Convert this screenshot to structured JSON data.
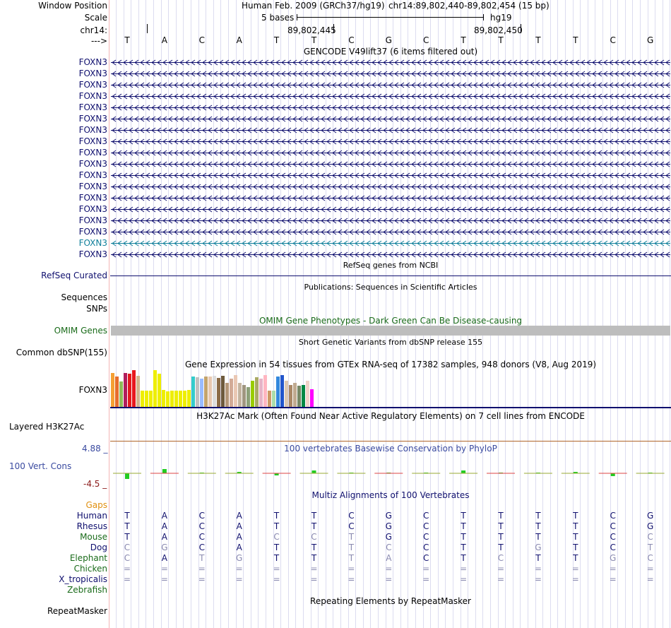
{
  "header": {
    "window_position_label": "Window Position",
    "assembly": "Human Feb. 2009 (GRCh37/hg19)",
    "position": "chr14:89,802,440-89,802,454 (15 bp)",
    "scale_label": "Scale",
    "scale_text": "5 bases",
    "db": "hg19",
    "chrom_label": "chr14:",
    "coord1": "89,802,445",
    "coord2": "89,802,450",
    "strand_label": "--->"
  },
  "dna": [
    "T",
    "A",
    "C",
    "A",
    "T",
    "T",
    "C",
    "G",
    "C",
    "T",
    "T",
    "T",
    "T",
    "C",
    "G"
  ],
  "gencode": {
    "title": "GENCODE V49lift37 (6 items filtered out)",
    "genes": [
      {
        "name": "FOXN3",
        "color": "#0f0f6e"
      },
      {
        "name": "FOXN3",
        "color": "#0f0f6e"
      },
      {
        "name": "FOXN3",
        "color": "#0f0f6e"
      },
      {
        "name": "FOXN3",
        "color": "#0f0f6e"
      },
      {
        "name": "FOXN3",
        "color": "#0f0f6e"
      },
      {
        "name": "FOXN3",
        "color": "#0f0f6e"
      },
      {
        "name": "FOXN3",
        "color": "#0f0f6e"
      },
      {
        "name": "FOXN3",
        "color": "#0f0f6e"
      },
      {
        "name": "FOXN3",
        "color": "#0f0f6e"
      },
      {
        "name": "FOXN3",
        "color": "#0f0f6e"
      },
      {
        "name": "FOXN3",
        "color": "#0f0f6e"
      },
      {
        "name": "FOXN3",
        "color": "#0f0f6e"
      },
      {
        "name": "FOXN3",
        "color": "#0f0f6e"
      },
      {
        "name": "FOXN3",
        "color": "#0f0f6e"
      },
      {
        "name": "FOXN3",
        "color": "#0f0f6e"
      },
      {
        "name": "FOXN3",
        "color": "#0f0f6e"
      },
      {
        "name": "FOXN3",
        "color": "#0f7f9a"
      },
      {
        "name": "FOXN3",
        "color": "#0f0f6e"
      }
    ]
  },
  "refseq": {
    "title": "RefSeq genes from NCBI",
    "label": "RefSeq Curated"
  },
  "publications": {
    "title": "Publications: Sequences in Scientific Articles",
    "label1": "Sequences",
    "label2": "SNPs"
  },
  "omim": {
    "title": "OMIM Gene Phenotypes - Dark Green Can Be Disease-causing",
    "label": "OMIM Genes"
  },
  "dbsnp": {
    "title": "Short Genetic Variants from dbSNP release 155",
    "label": "Common dbSNP(155)"
  },
  "gtex": {
    "title": "Gene Expression in 54 tissues from GTEx RNA-seq of 17382 samples, 948 donors (V8, Aug 2019)",
    "label": "FOXN3",
    "bars": [
      {
        "v": 0.92,
        "c": "#f5a034"
      },
      {
        "v": 0.83,
        "c": "#e76d2b"
      },
      {
        "v": 0.7,
        "c": "#8fbc5a"
      },
      {
        "v": 0.92,
        "c": "#b01d5c"
      },
      {
        "v": 0.9,
        "c": "#e31a1c"
      },
      {
        "v": 1.0,
        "c": "#e8171d"
      },
      {
        "v": 0.85,
        "c": "#d2b48c"
      },
      {
        "v": 0.44,
        "c": "#eeee00"
      },
      {
        "v": 0.44,
        "c": "#eeee00"
      },
      {
        "v": 0.44,
        "c": "#eeee00"
      },
      {
        "v": 1.0,
        "c": "#eeee00"
      },
      {
        "v": 0.9,
        "c": "#eeee00"
      },
      {
        "v": 0.46,
        "c": "#eeee00"
      },
      {
        "v": 0.42,
        "c": "#eeee00"
      },
      {
        "v": 0.44,
        "c": "#eeee00"
      },
      {
        "v": 0.44,
        "c": "#eeee00"
      },
      {
        "v": 0.44,
        "c": "#eeee00"
      },
      {
        "v": 0.44,
        "c": "#eeee00"
      },
      {
        "v": 0.46,
        "c": "#eeee00"
      },
      {
        "v": 0.82,
        "c": "#33cccc"
      },
      {
        "v": 0.8,
        "c": "#c0c0c0"
      },
      {
        "v": 0.76,
        "c": "#99bbff"
      },
      {
        "v": 0.82,
        "c": "#c4a46c"
      },
      {
        "v": 0.82,
        "c": "#e8c8b0"
      },
      {
        "v": 0.85,
        "c": "#dddddd"
      },
      {
        "v": 0.78,
        "c": "#8b6b47"
      },
      {
        "v": 0.85,
        "c": "#6e5a3c"
      },
      {
        "v": 0.66,
        "c": "#b49678"
      },
      {
        "v": 0.76,
        "c": "#d2aa96"
      },
      {
        "v": 0.86,
        "c": "#eac8b4"
      },
      {
        "v": 0.66,
        "c": "#c4b4a0"
      },
      {
        "v": 0.6,
        "c": "#a09680"
      },
      {
        "v": 0.54,
        "c": "#8ca078"
      },
      {
        "v": 0.72,
        "c": "#99cc00"
      },
      {
        "v": 0.8,
        "c": "#aaaa66"
      },
      {
        "v": 0.76,
        "c": "#e6b4c8"
      },
      {
        "v": 0.86,
        "c": "#ffb6c1"
      },
      {
        "v": 0.44,
        "c": "#cc9966"
      },
      {
        "v": 0.44,
        "c": "#aaddaa"
      },
      {
        "v": 0.82,
        "c": "#3388dd"
      },
      {
        "v": 0.86,
        "c": "#2255cc"
      },
      {
        "v": 0.72,
        "c": "#dcc8b4"
      },
      {
        "v": 0.6,
        "c": "#aa8866"
      },
      {
        "v": 0.66,
        "c": "#c0aa90"
      },
      {
        "v": 0.58,
        "c": "#778866"
      },
      {
        "v": 0.6,
        "c": "#008844"
      },
      {
        "v": 0.72,
        "c": "#f0d2c8"
      },
      {
        "v": 0.48,
        "c": "#ff00ff"
      }
    ]
  },
  "h3k27ac": {
    "title": "H3K27Ac Mark (Often Found Near Active Regulatory Elements) on 7 cell lines from ENCODE",
    "label": "Layered H3K27Ac"
  },
  "conservation": {
    "title": "100 vertebrates Basewise Conservation by PhyloP",
    "label": "100 Vert. Cons",
    "max_label": "4.88 _",
    "min_label": "-4.5 _",
    "scores": [
      -1.2,
      0.9,
      0.0,
      0.35,
      -0.4,
      0.6,
      0.0,
      0.0,
      0.15,
      0.5,
      0.2,
      0.0,
      0.3,
      -0.5,
      0.0
    ]
  },
  "multiz": {
    "title": "Multiz Alignments of 100 Vertebrates",
    "gaps_label": "Gaps",
    "species": [
      {
        "name": "Human",
        "name_color": "#0f0f6e",
        "bases": [
          "T",
          "A",
          "C",
          "A",
          "T",
          "T",
          "C",
          "G",
          "C",
          "T",
          "T",
          "T",
          "T",
          "C",
          "G"
        ],
        "dim": []
      },
      {
        "name": "Rhesus",
        "name_color": "#0f0f6e",
        "bases": [
          "T",
          "A",
          "C",
          "A",
          "T",
          "T",
          "C",
          "G",
          "C",
          "T",
          "T",
          "T",
          "T",
          "C",
          "G"
        ],
        "dim": []
      },
      {
        "name": "Mouse",
        "name_color": "#1a6b1a",
        "bases": [
          "T",
          "A",
          "C",
          "A",
          "C",
          "C",
          "T",
          "G",
          "C",
          "T",
          "T",
          "T",
          "T",
          "C",
          "C"
        ],
        "dim": [
          4,
          5,
          6,
          14
        ]
      },
      {
        "name": "Dog",
        "name_color": "#0f0f6e",
        "bases": [
          "C",
          "G",
          "C",
          "A",
          "T",
          "T",
          "T",
          "C",
          "C",
          "T",
          "T",
          "G",
          "T",
          "C",
          "T"
        ],
        "dim": [
          0,
          1,
          6,
          7,
          11,
          14
        ]
      },
      {
        "name": "Elephant",
        "name_color": "#1a6b1a",
        "bases": [
          "C",
          "A",
          "T",
          "G",
          "T",
          "T",
          "T",
          "A",
          "C",
          "T",
          "C",
          "T",
          "T",
          "G",
          "C"
        ],
        "dim": [
          0,
          2,
          3,
          6,
          7,
          10,
          13,
          14
        ]
      },
      {
        "name": "Chicken",
        "name_color": "#1a6b1a",
        "bases": [
          "=",
          "=",
          "=",
          "=",
          "=",
          "=",
          "=",
          "=",
          "=",
          "=",
          "=",
          "=",
          "=",
          "=",
          "="
        ],
        "dim": [
          0,
          1,
          2,
          3,
          4,
          5,
          6,
          7,
          8,
          9,
          10,
          11,
          12,
          13,
          14
        ]
      },
      {
        "name": "X_tropicalis",
        "name_color": "#0f0f6e",
        "bases": [
          "=",
          "=",
          "=",
          "=",
          "=",
          "=",
          "=",
          "=",
          "=",
          "=",
          "=",
          "=",
          "=",
          "=",
          "="
        ],
        "dim": [
          0,
          1,
          2,
          3,
          4,
          5,
          6,
          7,
          8,
          9,
          10,
          11,
          12,
          13,
          14
        ]
      },
      {
        "name": "Zebrafish",
        "name_color": "#1a6b1a",
        "bases": [],
        "dim": []
      }
    ]
  },
  "repeatmasker": {
    "title": "Repeating Elements by RepeatMasker",
    "label": "RepeatMasker"
  }
}
